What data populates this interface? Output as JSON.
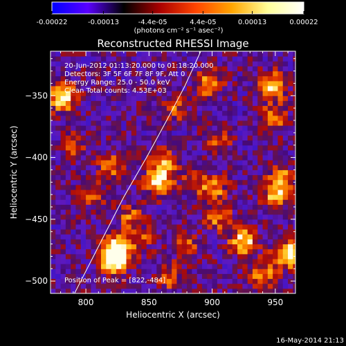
{
  "colorbar": {
    "tick_labels": [
      "-0.00022",
      "-0.00013",
      "-4.4e-05",
      "4.4e-05",
      "0.00013",
      "0.00022"
    ],
    "tick_values": [
      -0.00022,
      -0.00013,
      -4.4e-05,
      4.4e-05,
      0.00013,
      0.00022
    ],
    "range": [
      -0.00022,
      0.00022
    ],
    "units_label": "(photons cm⁻² s⁻¹ asec⁻²)",
    "colormap": [
      "#0000ff",
      "#5a00ff",
      "#000000",
      "#aa0000",
      "#ff4500",
      "#ffa500",
      "#ffff99",
      "#ffffff"
    ]
  },
  "chart_data": {
    "type": "heatmap",
    "title": "Reconstructed RHESSI Image",
    "xlabel": "Heliocentric X (arcsec)",
    "ylabel": "Heliocentric Y (arcsec)",
    "xlim": [
      772,
      966
    ],
    "ylim": [
      -510,
      -314
    ],
    "x_ticks": [
      800,
      850,
      900,
      950
    ],
    "x_tick_labels": [
      "800",
      "850",
      "900",
      "950"
    ],
    "y_ticks": [
      -350,
      -400,
      -450,
      -500
    ],
    "y_tick_labels": [
      "−350",
      "−400",
      "−450",
      "−500"
    ],
    "hotspots": [
      {
        "x": 781,
        "y": -351,
        "strength": 0.9
      },
      {
        "x": 822,
        "y": -484,
        "strength": 1.0
      },
      {
        "x": 826,
        "y": -472,
        "strength": 0.85
      },
      {
        "x": 805,
        "y": -430,
        "strength": 0.45
      },
      {
        "x": 820,
        "y": -408,
        "strength": 0.5
      },
      {
        "x": 835,
        "y": -447,
        "strength": 0.4
      },
      {
        "x": 857,
        "y": -420,
        "strength": 0.75
      },
      {
        "x": 862,
        "y": -405,
        "strength": 0.6
      },
      {
        "x": 845,
        "y": -465,
        "strength": 0.35
      },
      {
        "x": 866,
        "y": -497,
        "strength": 0.4
      },
      {
        "x": 870,
        "y": -360,
        "strength": 0.4
      },
      {
        "x": 898,
        "y": -340,
        "strength": 0.6
      },
      {
        "x": 901,
        "y": -425,
        "strength": 0.55
      },
      {
        "x": 905,
        "y": -448,
        "strength": 0.5
      },
      {
        "x": 905,
        "y": -387,
        "strength": 0.35
      },
      {
        "x": 925,
        "y": -468,
        "strength": 0.8
      },
      {
        "x": 948,
        "y": -342,
        "strength": 0.75
      },
      {
        "x": 948,
        "y": -368,
        "strength": 0.5
      },
      {
        "x": 955,
        "y": -418,
        "strength": 0.6
      },
      {
        "x": 950,
        "y": -432,
        "strength": 0.55
      },
      {
        "x": 960,
        "y": -478,
        "strength": 0.9
      },
      {
        "x": 940,
        "y": -495,
        "strength": 0.55
      },
      {
        "x": 880,
        "y": -472,
        "strength": 0.4
      },
      {
        "x": 790,
        "y": -390,
        "strength": 0.35
      },
      {
        "x": 885,
        "y": -420,
        "strength": 0.3
      }
    ],
    "limb_line": [
      [
        791,
        -510
      ],
      [
        810,
        -472
      ],
      [
        830,
        -432
      ],
      [
        848,
        -400
      ],
      [
        864,
        -370
      ],
      [
        878,
        -343
      ],
      [
        891,
        -314
      ]
    ],
    "annotations": [
      "20-Jun-2012 01:13:20.000 to 01:18:20.000",
      "Detectors: 3F 5F 6F 7F 8F 9F, Att 0",
      "Energy Range: 25.0 - 50.0 keV",
      "Clean    Total counts: 4.53E+03"
    ],
    "peak_label": "Position of Peak = [822,-484]",
    "peak": [
      822,
      -484
    ]
  },
  "footer": {
    "timestamp": "16-May-2014 21:13"
  }
}
